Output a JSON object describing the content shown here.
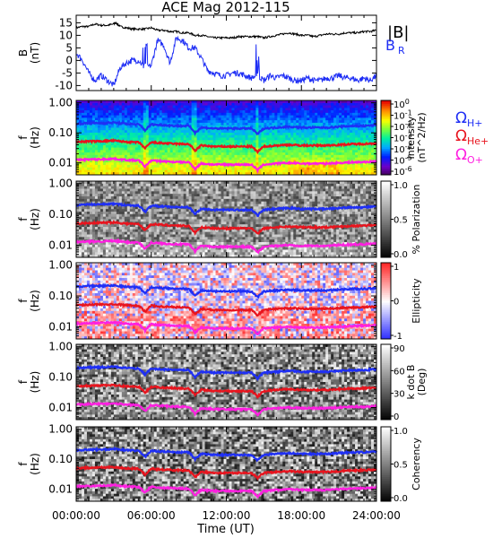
{
  "title": "ACE Mag 2012-115",
  "colors": {
    "btotal": "#000000",
    "br": "#1f2ff5",
    "omega_h": "#1f2ff5",
    "omega_he": "#e8141e",
    "omega_o": "#ff1fe0"
  },
  "x_axis": {
    "label": "Time (UT)",
    "range_hours": [
      0,
      24
    ],
    "tick_labels": [
      "00:00:00",
      "06:00:00",
      "12:00:00",
      "18:00:00",
      "24:00:00"
    ]
  },
  "chart_data": [
    {
      "type": "line",
      "name": "field",
      "ylabel": "B\n(nT)",
      "ylim": [
        -12,
        18
      ],
      "y_ticks": [
        -10,
        -5,
        0,
        5,
        10,
        15
      ],
      "legend": {
        "btotal": "|B|",
        "br_main": "B",
        "br_sub": "R"
      },
      "series": [
        {
          "name": "|B|",
          "x": [
            0,
            0.5,
            1,
            1.5,
            2,
            2.5,
            3,
            3.2,
            3.5,
            4,
            4.5,
            5,
            5.5,
            6,
            6.5,
            7,
            7.5,
            8,
            8.5,
            9,
            9.5,
            10,
            10.5,
            11,
            11.5,
            12,
            12.5,
            13,
            13.5,
            14,
            14.5,
            15,
            15.5,
            16,
            16.5,
            17,
            17.5,
            18,
            18.5,
            19,
            19.5,
            20,
            20.5,
            21,
            21.5,
            22,
            22.5,
            23,
            23.5,
            24
          ],
          "values": [
            13,
            13.5,
            13.5,
            14.5,
            14,
            14,
            14.5,
            15,
            13.5,
            13,
            12.5,
            12.5,
            12.5,
            13,
            12,
            12,
            11.5,
            11.5,
            11,
            11,
            10,
            10,
            9.5,
            9,
            9,
            9,
            9,
            9.5,
            9.5,
            9.5,
            9.5,
            9,
            9.5,
            10,
            10.5,
            11,
            10.5,
            10,
            10,
            9.5,
            10,
            10.5,
            10.5,
            10.5,
            11,
            11,
            11,
            11.5,
            11.5,
            12
          ]
        },
        {
          "name": "B_R",
          "x": [
            0,
            0.5,
            1,
            1.5,
            2,
            2.5,
            3,
            3.5,
            4,
            4.5,
            5,
            5.5,
            6,
            6.5,
            7,
            7.5,
            8,
            8.5,
            9,
            9.5,
            10,
            10.5,
            11,
            11.5,
            12,
            12.5,
            13,
            13.5,
            14,
            14.5,
            15,
            15.5,
            16,
            16.5,
            17,
            17.5,
            18,
            18.5,
            19,
            19.5,
            20,
            20.5,
            21,
            21.5,
            22,
            22.5,
            23,
            23.5,
            24
          ],
          "values": [
            3,
            0,
            -5,
            -8,
            -6,
            -8,
            -10,
            -3,
            -1,
            0,
            0,
            -3,
            -2,
            8,
            6,
            -1,
            9,
            8,
            5,
            5,
            1,
            -4,
            -5,
            -6,
            -6,
            -5,
            -5,
            -6,
            -7,
            -6,
            -8,
            -6,
            -7,
            -6,
            -7,
            -8,
            -8,
            -7,
            -8,
            -8,
            -7,
            -7,
            -6,
            -7,
            -7,
            -8,
            -7,
            -8,
            -6
          ]
        }
      ]
    },
    {
      "type": "heatmap",
      "name": "intensity",
      "ylabel": "f\n(Hz)",
      "colorbar_label": "Intensity\n(nT^2/Hz)",
      "colorbar_ticks": [
        "10^0",
        "10^-1",
        "10^-2",
        "10^-3",
        "10^-4",
        "10^-5",
        "10^-6"
      ],
      "legend": {
        "h": "Ω",
        "h_sub": "H+",
        "he": "Ω",
        "he_sub": "He+",
        "o": "Ω",
        "o_sub": "O+"
      }
    },
    {
      "type": "heatmap",
      "name": "polarization",
      "ylabel": "f\n(Hz)",
      "colorbar_label": "% Polarization",
      "colorbar_ticks": [
        "1.0",
        "0.5",
        "0.0"
      ]
    },
    {
      "type": "heatmap",
      "name": "ellipticity",
      "ylabel": "f\n(Hz)",
      "colorbar_label": "Ellipticity",
      "colorbar_ticks": [
        "1",
        "0",
        "-1"
      ]
    },
    {
      "type": "heatmap",
      "name": "kdotb",
      "ylabel": "f\n(Hz)",
      "colorbar_label": "k dot B\n(Deg)",
      "colorbar_ticks": [
        "90",
        "60",
        "30",
        "0"
      ]
    },
    {
      "type": "heatmap",
      "name": "coherency",
      "ylabel": "f\n(Hz)",
      "colorbar_label": "Coherency",
      "colorbar_ticks": [
        "1.0",
        "0.5",
        "0.0"
      ]
    }
  ],
  "spectral_axis": {
    "range_hz": [
      0.004,
      1.2
    ],
    "tick_values": [
      1.0,
      0.1,
      0.01
    ],
    "tick_labels": [
      "1.00",
      "0.10",
      "0.01"
    ]
  },
  "gyrofrequency_lines": {
    "x": [
      0,
      1,
      2,
      3,
      4,
      5,
      5.5,
      6,
      7,
      8,
      9,
      9.5,
      10,
      11,
      12,
      13,
      14,
      14.5,
      15,
      16,
      17,
      18,
      19,
      20,
      21,
      22,
      23,
      24
    ],
    "omega_h": [
      0.2,
      0.21,
      0.21,
      0.22,
      0.2,
      0.19,
      0.12,
      0.19,
      0.18,
      0.17,
      0.17,
      0.1,
      0.15,
      0.14,
      0.14,
      0.14,
      0.14,
      0.09,
      0.14,
      0.15,
      0.16,
      0.15,
      0.15,
      0.15,
      0.16,
      0.17,
      0.17,
      0.18
    ],
    "omega_he": [
      0.05,
      0.052,
      0.053,
      0.055,
      0.05,
      0.048,
      0.03,
      0.048,
      0.045,
      0.043,
      0.042,
      0.025,
      0.038,
      0.035,
      0.035,
      0.035,
      0.035,
      0.023,
      0.035,
      0.038,
      0.04,
      0.038,
      0.038,
      0.038,
      0.04,
      0.042,
      0.043,
      0.045
    ],
    "omega_o": [
      0.0125,
      0.013,
      0.0132,
      0.0137,
      0.0125,
      0.012,
      0.0075,
      0.012,
      0.0112,
      0.0107,
      0.0105,
      0.0063,
      0.0095,
      0.0088,
      0.0088,
      0.0088,
      0.0088,
      0.0057,
      0.0088,
      0.0095,
      0.01,
      0.0095,
      0.0095,
      0.0095,
      0.01,
      0.0105,
      0.0107,
      0.0112
    ]
  }
}
